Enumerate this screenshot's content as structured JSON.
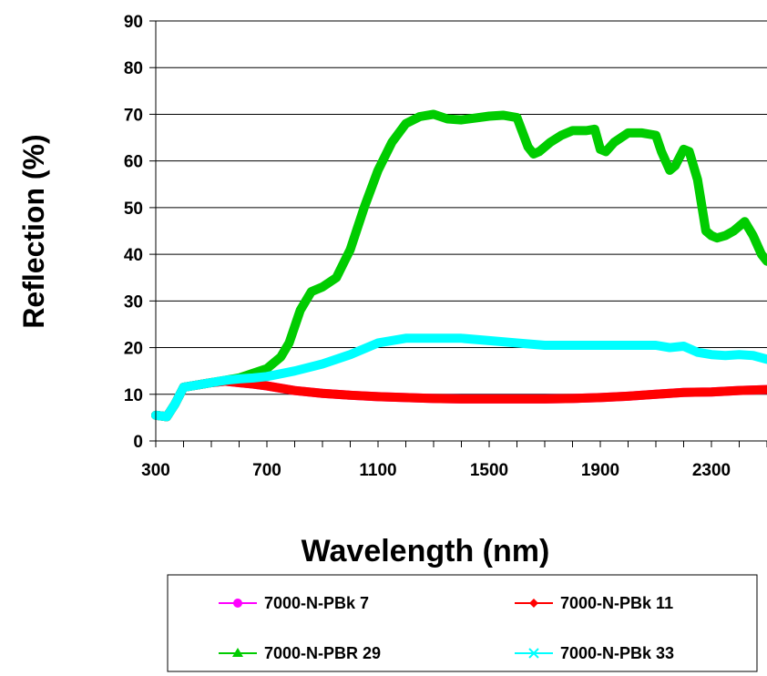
{
  "chart_data": {
    "type": "line",
    "title": "",
    "xlabel": "Wavelength (nm)",
    "ylabel": "Reflection (%)",
    "xlim": [
      300,
      2500
    ],
    "ylim": [
      0,
      90
    ],
    "x_ticks": [
      300,
      700,
      1100,
      1500,
      1900,
      2300
    ],
    "y_ticks": [
      0,
      10,
      20,
      30,
      40,
      50,
      60,
      70,
      80,
      90
    ],
    "grid": "horizontal",
    "legend_position": "bottom",
    "series": [
      {
        "name": "7000-N-PBk 7",
        "color": "#ff00ff",
        "marker": "circle",
        "x": [
          300,
          340,
          370,
          400,
          450,
          500,
          550,
          600,
          650,
          700,
          800,
          900,
          1000,
          1100,
          1200,
          1300,
          1400,
          1500,
          1600,
          1700,
          1800,
          1900,
          2000,
          2100,
          2200,
          2300,
          2400,
          2500
        ],
        "y": [
          5.5,
          5.2,
          8,
          11.5,
          12,
          12.5,
          12.8,
          12.5,
          12.2,
          11.8,
          10.8,
          10.2,
          9.8,
          9.5,
          9.3,
          9.1,
          9.0,
          9.0,
          9.0,
          9.0,
          9.1,
          9.3,
          9.6,
          10.0,
          10.4,
          10.5,
          10.8,
          11.0
        ]
      },
      {
        "name": "7000-N-PBk 11",
        "color": "#ff0000",
        "marker": "diamond",
        "x": [
          300,
          340,
          370,
          400,
          450,
          500,
          550,
          600,
          650,
          700,
          800,
          900,
          1000,
          1100,
          1200,
          1300,
          1400,
          1500,
          1600,
          1700,
          1800,
          1900,
          2000,
          2100,
          2200,
          2300,
          2400,
          2500
        ],
        "y": [
          5.5,
          5.2,
          8,
          11.5,
          12,
          12.5,
          12.8,
          12.5,
          12.2,
          11.8,
          10.8,
          10.2,
          9.8,
          9.5,
          9.3,
          9.1,
          9.0,
          9.0,
          9.0,
          9.0,
          9.1,
          9.3,
          9.6,
          10.0,
          10.4,
          10.5,
          10.8,
          11.0
        ]
      },
      {
        "name": "7000-N-PBR 29",
        "color": "#00cc00",
        "marker": "triangle",
        "x": [
          300,
          340,
          370,
          400,
          450,
          500,
          550,
          600,
          650,
          700,
          750,
          780,
          820,
          860,
          900,
          950,
          1000,
          1050,
          1100,
          1150,
          1200,
          1250,
          1300,
          1350,
          1400,
          1450,
          1500,
          1550,
          1600,
          1640,
          1660,
          1680,
          1700,
          1720,
          1760,
          1800,
          1850,
          1880,
          1900,
          1920,
          1950,
          2000,
          2050,
          2100,
          2120,
          2150,
          2170,
          2200,
          2220,
          2250,
          2280,
          2300,
          2320,
          2350,
          2380,
          2420,
          2450,
          2480,
          2500
        ],
        "y": [
          5.5,
          5.2,
          8,
          11.5,
          12,
          12.5,
          13,
          13.5,
          14.5,
          15.5,
          18,
          21,
          28,
          32,
          33,
          35,
          41,
          50,
          58,
          64,
          68,
          69.5,
          70,
          69,
          68.8,
          69.2,
          69.6,
          69.8,
          69.3,
          63,
          61.5,
          62,
          63,
          64,
          65.5,
          66.5,
          66.5,
          66.8,
          62.5,
          62,
          64,
          66,
          66,
          65.5,
          62,
          58,
          59,
          62.5,
          62,
          56,
          45,
          44,
          43.5,
          44,
          45,
          47,
          44,
          40,
          38.5
        ]
      },
      {
        "name": "7000-N-PBk 33",
        "color": "#00ffff",
        "marker": "x",
        "x": [
          300,
          340,
          370,
          400,
          450,
          500,
          550,
          600,
          650,
          700,
          800,
          900,
          1000,
          1100,
          1200,
          1300,
          1400,
          1500,
          1600,
          1700,
          1800,
          1900,
          2000,
          2100,
          2150,
          2200,
          2250,
          2300,
          2350,
          2400,
          2450,
          2500
        ],
        "y": [
          5.5,
          5.2,
          8,
          11.5,
          12,
          12.5,
          13,
          13.3,
          13.5,
          13.8,
          15,
          16.5,
          18.5,
          21,
          22,
          22,
          22,
          21.5,
          21,
          20.5,
          20.5,
          20.5,
          20.5,
          20.5,
          20,
          20.3,
          19,
          18.5,
          18.3,
          18.5,
          18.3,
          17.5
        ]
      }
    ]
  }
}
